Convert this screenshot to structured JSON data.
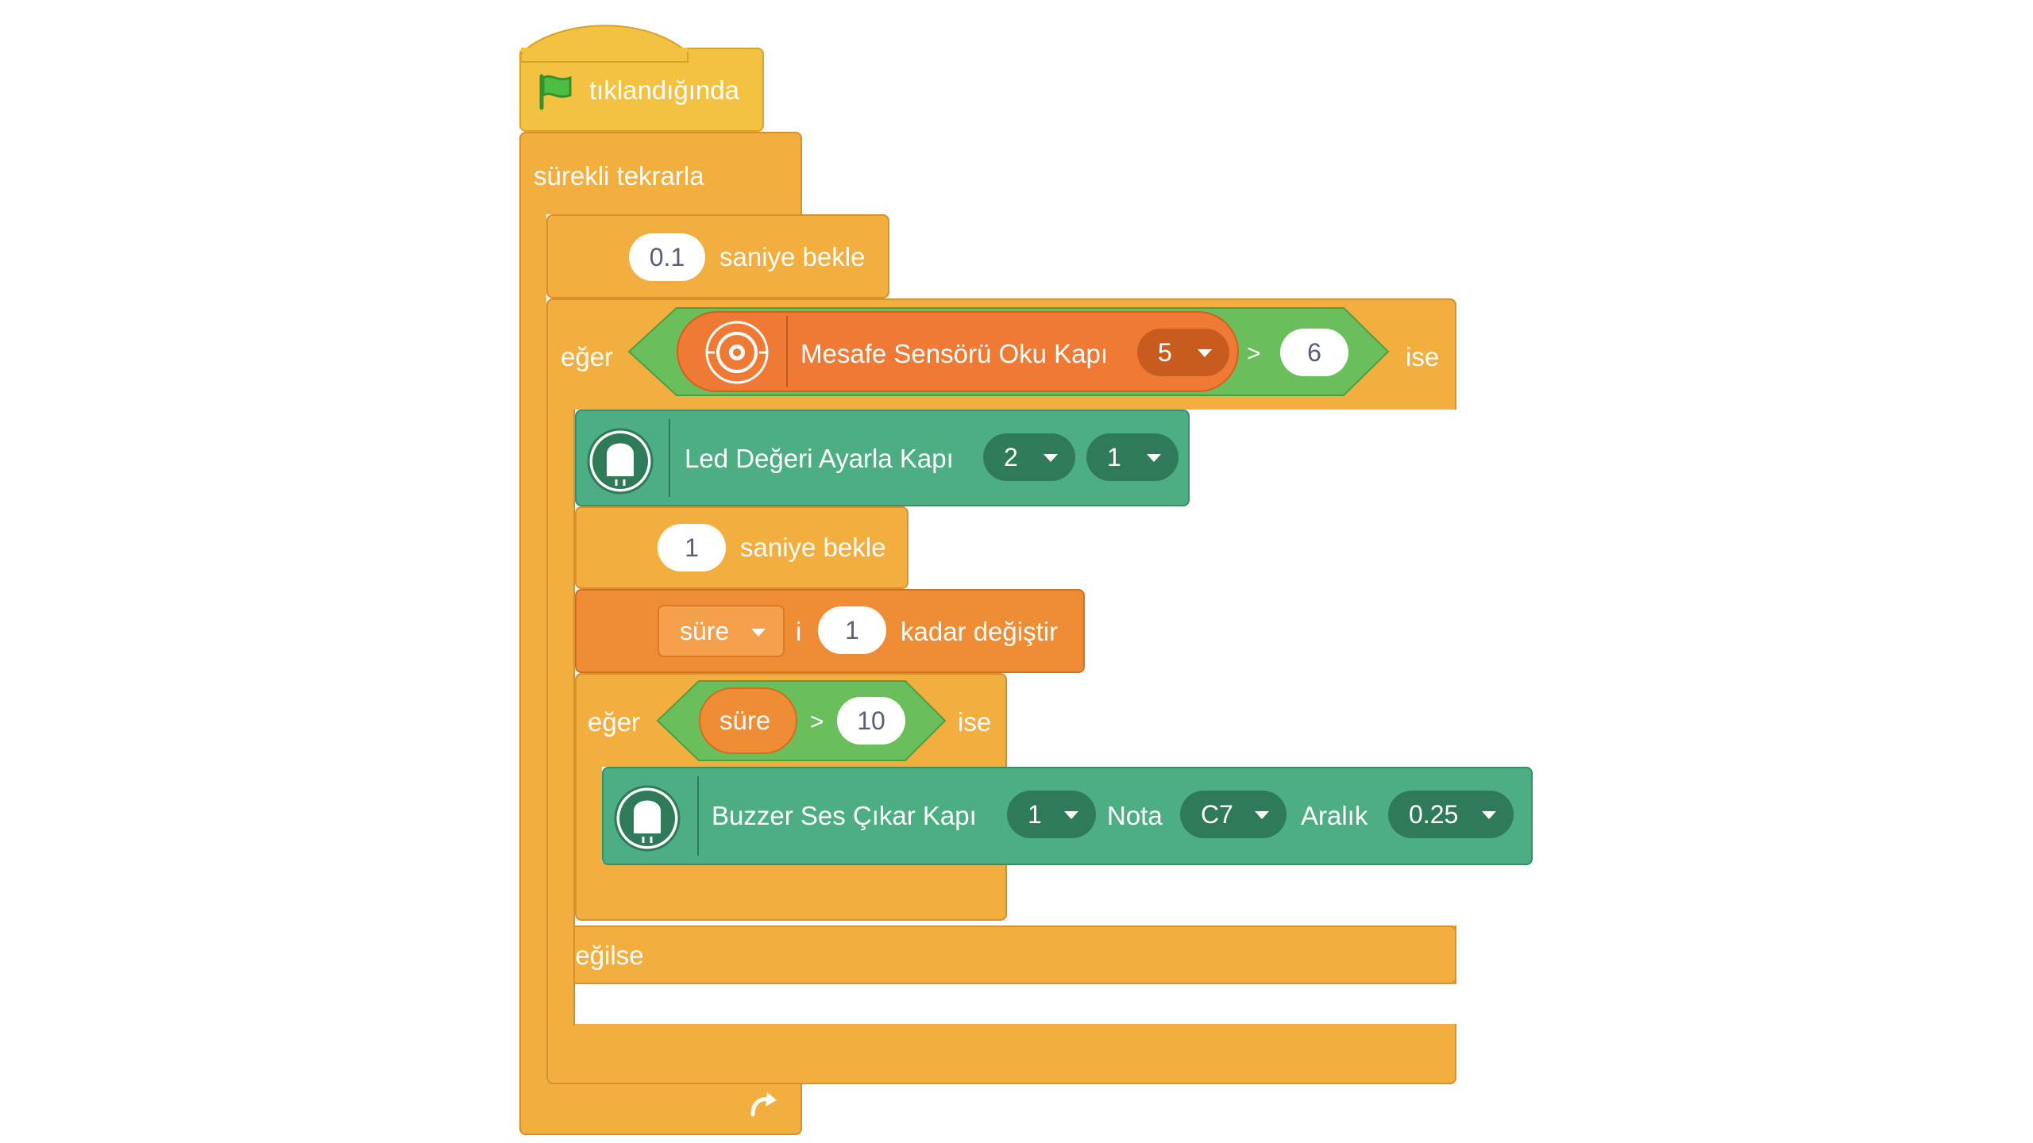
{
  "hat": {
    "label": "tıklandığında",
    "icon": "green-flag-icon"
  },
  "forever": {
    "label": "sürekli tekrarla",
    "loop_icon": "loop-arrow-icon"
  },
  "wait1": {
    "value": "0.1",
    "label": "saniye bekle"
  },
  "if1": {
    "label_if": "eğer",
    "label_then": "ise",
    "sensor_label": "Mesafe Sensörü Oku Kapı",
    "sensor_icon": "distance-sensor-icon",
    "port": "5",
    "op": ">",
    "compare_value": "6"
  },
  "led": {
    "label": "Led Değeri Ayarla Kapı",
    "icon": "led-icon",
    "port": "2",
    "value": "1"
  },
  "wait2": {
    "value": "1",
    "label": "saniye bekle"
  },
  "change": {
    "variable": "süre",
    "suffix": "i",
    "value": "1",
    "label": "kadar değiştir"
  },
  "if2": {
    "label_if": "eğer",
    "variable": "süre",
    "op": ">",
    "compare_value": "10",
    "label_then": "ise"
  },
  "buzzer": {
    "label": "Buzzer Ses Çıkar Kapı",
    "icon": "buzzer-icon",
    "port": "1",
    "nota_label": "Nota",
    "nota": "C7",
    "aralik_label": "Aralık",
    "aralik": "0.25"
  },
  "else_label": "değilse",
  "colors": {
    "events": "#F3C242",
    "control": "#F2AE3F",
    "variables": "#EF8C36",
    "extension": "#4DAE84",
    "operators": "#6BBE5C"
  }
}
